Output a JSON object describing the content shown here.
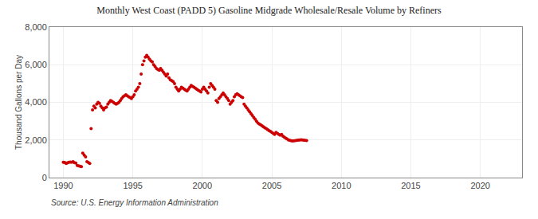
{
  "chart_data": {
    "type": "scatter",
    "title": "Monthly West Coast (PADD 5) Gasoline Midgrade Wholesale/Resale Volume by Refiners",
    "ylabel": "Thousand Gallons per Day",
    "source": "Source: U.S. Energy Information Administration",
    "color": "#CC0000",
    "marker": "circle",
    "grid": true,
    "xlim": [
      1989,
      2023
    ],
    "ylim": [
      0,
      8000
    ],
    "xticks": [
      1990,
      1995,
      2000,
      2005,
      2010,
      2015,
      2020
    ],
    "yticks": [
      0,
      {
        "value": 2000,
        "label": "2,000"
      },
      {
        "value": 4000,
        "label": "4,000"
      },
      {
        "value": 6000,
        "label": "6,000"
      },
      {
        "value": 8000,
        "label": "8,000"
      }
    ],
    "x": [
      1990.0,
      1990.1,
      1990.2,
      1990.3,
      1990.4,
      1990.5,
      1990.6,
      1990.7,
      1990.8,
      1990.9,
      1991.0,
      1991.1,
      1991.2,
      1991.3,
      1991.4,
      1991.5,
      1991.6,
      1991.7,
      1991.8,
      1991.9,
      1992.0,
      1992.1,
      1992.2,
      1992.3,
      1992.4,
      1992.5,
      1992.6,
      1992.7,
      1992.8,
      1992.9,
      1993.0,
      1993.1,
      1993.2,
      1993.3,
      1993.4,
      1993.5,
      1993.6,
      1993.7,
      1993.8,
      1993.9,
      1994.0,
      1994.1,
      1994.2,
      1994.3,
      1994.4,
      1994.5,
      1994.6,
      1994.7,
      1994.8,
      1994.9,
      1995.0,
      1995.1,
      1995.2,
      1995.3,
      1995.4,
      1995.5,
      1995.6,
      1995.7,
      1995.8,
      1995.9,
      1996.0,
      1996.1,
      1996.2,
      1996.3,
      1996.4,
      1996.5,
      1996.6,
      1996.7,
      1996.8,
      1996.9,
      1997.0,
      1997.1,
      1997.2,
      1997.3,
      1997.4,
      1997.5,
      1997.6,
      1997.7,
      1997.8,
      1997.9,
      1998.0,
      1998.1,
      1998.2,
      1998.3,
      1998.4,
      1998.5,
      1998.6,
      1998.7,
      1998.8,
      1998.9,
      1999.0,
      1999.1,
      1999.2,
      1999.3,
      1999.4,
      1999.5,
      1999.6,
      1999.7,
      1999.8,
      1999.9,
      2000.0,
      2000.1,
      2000.2,
      2000.3,
      2000.4,
      2000.5,
      2000.6,
      2000.7,
      2000.8,
      2000.9,
      2001.0,
      2001.1,
      2001.2,
      2001.3,
      2001.4,
      2001.5,
      2001.6,
      2001.7,
      2001.8,
      2001.9,
      2002.0,
      2002.1,
      2002.2,
      2002.3,
      2002.4,
      2002.5,
      2002.6,
      2002.7,
      2002.8,
      2002.9,
      2003.0,
      2003.1,
      2003.2,
      2003.3,
      2003.4,
      2003.5,
      2003.6,
      2003.7,
      2003.8,
      2003.9,
      2004.0,
      2004.1,
      2004.2,
      2004.3,
      2004.4,
      2004.5,
      2004.6,
      2004.7,
      2004.8,
      2004.9,
      2005.0,
      2005.1,
      2005.2,
      2005.3,
      2005.4,
      2005.5,
      2005.6,
      2005.7,
      2005.8,
      2005.9,
      2006.0,
      2006.1,
      2006.2,
      2006.3,
      2006.4,
      2006.5,
      2006.6,
      2006.7,
      2006.8,
      2006.9,
      2007.0,
      2007.1,
      2007.2,
      2007.3,
      2007.4,
      2007.5
    ],
    "values": [
      820,
      800,
      750,
      780,
      810,
      830,
      820,
      850,
      790,
      770,
      650,
      620,
      600,
      580,
      1300,
      1200,
      1100,
      850,
      800,
      750,
      2600,
      3600,
      3800,
      3700,
      3900,
      4000,
      3950,
      3800,
      3700,
      3600,
      3700,
      3750,
      3900,
      4000,
      4100,
      4050,
      4000,
      3950,
      3900,
      3950,
      4000,
      4100,
      4200,
      4300,
      4350,
      4400,
      4350,
      4300,
      4250,
      4200,
      4300,
      4400,
      4600,
      4700,
      4800,
      5000,
      5500,
      6000,
      6200,
      6400,
      6500,
      6400,
      6300,
      6200,
      6150,
      6000,
      5900,
      5800,
      5750,
      5700,
      5800,
      5700,
      5600,
      5500,
      5400,
      5500,
      5300,
      5200,
      5150,
      5100,
      5000,
      4800,
      4700,
      4600,
      4700,
      4800,
      4750,
      4700,
      4650,
      4600,
      4700,
      4800,
      4900,
      4850,
      4800,
      4750,
      4700,
      4650,
      4600,
      4550,
      4700,
      4800,
      4700,
      4600,
      4500,
      4800,
      5000,
      4900,
      4800,
      4700,
      4100,
      4000,
      4200,
      4300,
      4400,
      4500,
      4400,
      4300,
      4200,
      4100,
      3900,
      4000,
      4100,
      4300,
      4400,
      4450,
      4400,
      4350,
      4300,
      4250,
      3900,
      3800,
      3700,
      3600,
      3500,
      3400,
      3300,
      3200,
      3100,
      3000,
      2900,
      2850,
      2800,
      2750,
      2700,
      2650,
      2600,
      2550,
      2500,
      2450,
      2400,
      2350,
      2300,
      2400,
      2350,
      2300,
      2250,
      2300,
      2200,
      2150,
      2100,
      2050,
      2000,
      1980,
      1960,
      1950,
      1960,
      1970,
      1980,
      1990,
      2000,
      2010,
      2000,
      1990,
      1980,
      1970
    ]
  }
}
